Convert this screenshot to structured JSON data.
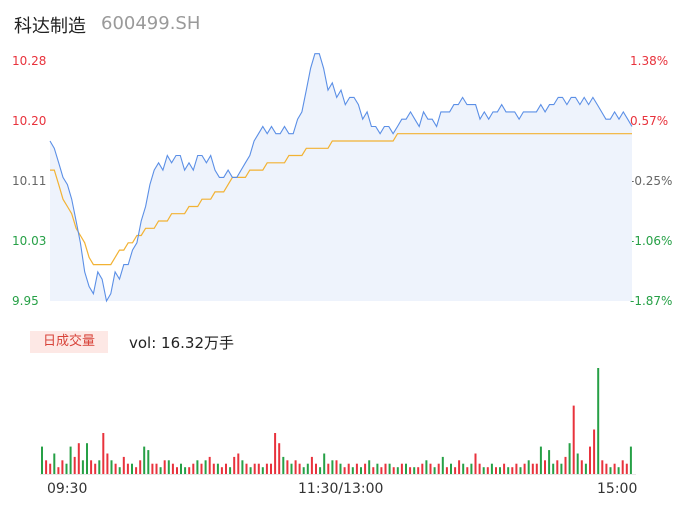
{
  "header": {
    "name": "科达制造",
    "code": "600499.SH"
  },
  "chart_data": [
    {
      "type": "line",
      "series": [
        {
          "values": [
            10.17,
            10.16,
            10.14,
            10.12,
            10.11,
            10.09,
            10.06,
            10.03,
            9.99,
            9.97,
            9.96,
            9.99,
            9.98,
            9.95,
            9.96,
            9.99,
            9.98,
            10.0,
            10.0,
            10.02,
            10.03,
            10.06,
            10.08,
            10.11,
            10.13,
            10.14,
            10.13,
            10.15,
            10.14,
            10.15,
            10.15,
            10.13,
            10.14,
            10.13,
            10.15,
            10.15,
            10.14,
            10.15,
            10.13,
            10.12,
            10.12,
            10.13,
            10.12,
            10.12,
            10.13,
            10.14,
            10.15,
            10.17,
            10.18,
            10.19,
            10.18,
            10.19,
            10.18,
            10.18,
            10.19,
            10.18,
            10.18,
            10.2,
            10.21,
            10.24,
            10.27,
            10.29,
            10.29,
            10.27,
            10.24,
            10.25,
            10.23,
            10.24,
            10.22,
            10.23,
            10.23,
            10.22,
            10.2,
            10.21,
            10.19,
            10.19,
            10.18,
            10.19,
            10.19,
            10.18,
            10.19,
            10.2,
            10.2,
            10.21,
            10.2,
            10.19,
            10.21,
            10.2,
            10.2,
            10.19,
            10.21,
            10.21,
            10.21,
            10.22,
            10.22,
            10.23,
            10.22,
            10.22,
            10.22,
            10.2,
            10.21,
            10.2,
            10.21,
            10.21,
            10.22,
            10.21,
            10.21,
            10.21,
            10.2,
            10.21,
            10.21,
            10.21,
            10.21,
            10.22,
            10.21,
            10.22,
            10.22,
            10.23,
            10.23,
            10.22,
            10.23,
            10.23,
            10.22,
            10.23,
            10.22,
            10.23,
            10.22,
            10.21,
            10.2,
            10.2,
            10.21,
            10.2,
            10.21,
            10.2,
            10.19
          ]
        },
        {
          "values": [
            10.13,
            10.13,
            10.11,
            10.09,
            10.08,
            10.07,
            10.05,
            10.04,
            10.03,
            10.01,
            10.0,
            10.0,
            10.0,
            10.0,
            10.0,
            10.01,
            10.02,
            10.02,
            10.03,
            10.03,
            10.04,
            10.04,
            10.05,
            10.05,
            10.05,
            10.06,
            10.06,
            10.06,
            10.07,
            10.07,
            10.07,
            10.07,
            10.08,
            10.08,
            10.08,
            10.09,
            10.09,
            10.09,
            10.1,
            10.1,
            10.1,
            10.11,
            10.12,
            10.12,
            10.12,
            10.12,
            10.13,
            10.13,
            10.13,
            10.13,
            10.14,
            10.14,
            10.14,
            10.14,
            10.14,
            10.15,
            10.15,
            10.15,
            10.15,
            10.16,
            10.16,
            10.16,
            10.16,
            10.16,
            10.16,
            10.17,
            10.17,
            10.17,
            10.17,
            10.17,
            10.17,
            10.17,
            10.17,
            10.17,
            10.17,
            10.17,
            10.17,
            10.17,
            10.17,
            10.17,
            10.18,
            10.18,
            10.18,
            10.18,
            10.18,
            10.18,
            10.18,
            10.18,
            10.18,
            10.18,
            10.18,
            10.18,
            10.18,
            10.18,
            10.18,
            10.18,
            10.18,
            10.18,
            10.18,
            10.18,
            10.18,
            10.18,
            10.18,
            10.18,
            10.18,
            10.18,
            10.18,
            10.18,
            10.18,
            10.18,
            10.18,
            10.18,
            10.18,
            10.18,
            10.18,
            10.18,
            10.18,
            10.18,
            10.18,
            10.18,
            10.18,
            10.18,
            10.18,
            10.18,
            10.18,
            10.18,
            10.18,
            10.18,
            10.18,
            10.18,
            10.18,
            10.18,
            10.18,
            10.18,
            10.18
          ]
        }
      ],
      "y_ticks_left": [
        "10.28",
        "10.20",
        "10.11",
        "10.03",
        "9.95"
      ],
      "y_ticks_right": [
        "1.38%",
        "0.57%",
        "-0.25%",
        "-1.06%",
        "-1.87%"
      ],
      "ylim": [
        9.95,
        10.28
      ],
      "colors": {
        "price": "#5b8fe6",
        "avg": "#f2b233",
        "up": "#e8323c",
        "down": "#26a046",
        "neutral": "#666666"
      }
    },
    {
      "type": "bar",
      "title": "日成交量",
      "label": "vol: 16.32万手",
      "x_ticks": [
        "09:30",
        "11:30/13:00",
        "15:00"
      ],
      "values": [
        8,
        4,
        3,
        6,
        2,
        4,
        3,
        8,
        5,
        9,
        4,
        9,
        4,
        3,
        4,
        12,
        6,
        4,
        3,
        2,
        5,
        3,
        3,
        2,
        4,
        8,
        7,
        3,
        3,
        2,
        4,
        4,
        3,
        2,
        3,
        2,
        2,
        3,
        4,
        3,
        4,
        5,
        3,
        3,
        2,
        3,
        2,
        5,
        6,
        4,
        3,
        2,
        3,
        3,
        2,
        3,
        3,
        12,
        9,
        5,
        4,
        3,
        4,
        3,
        2,
        3,
        5,
        3,
        2,
        6,
        3,
        4,
        4,
        3,
        2,
        3,
        2,
        3,
        2,
        3,
        4,
        2,
        3,
        2,
        3,
        3,
        2,
        2,
        3,
        3,
        2,
        2,
        2,
        3,
        4,
        3,
        2,
        3,
        5,
        2,
        3,
        2,
        4,
        3,
        2,
        3,
        6,
        3,
        2,
        2,
        3,
        2,
        2,
        3,
        2,
        2,
        3,
        2,
        3,
        4,
        3,
        3,
        8,
        4,
        7,
        3,
        4,
        3,
        5,
        9,
        20,
        6,
        4,
        3,
        8,
        13,
        31,
        4,
        3,
        2,
        3,
        2,
        4,
        3,
        8
      ],
      "colors_up": [
        0,
        1,
        1,
        0,
        1,
        1,
        0,
        0,
        1,
        1,
        0,
        0,
        1,
        1,
        0,
        1,
        1,
        0,
        1,
        0,
        1,
        1,
        0,
        1,
        1,
        0,
        0,
        1,
        1,
        0,
        1,
        0,
        1,
        1,
        0,
        0,
        1,
        1,
        0,
        1,
        0,
        1,
        1,
        0,
        1,
        1,
        0,
        1,
        1,
        0,
        1,
        0,
        1,
        1,
        0,
        1,
        1,
        1,
        1,
        0,
        1,
        0,
        1,
        1,
        0,
        0,
        1,
        1,
        0,
        0,
        1,
        0,
        1,
        0,
        1,
        1,
        0,
        1,
        0,
        1,
        0,
        1,
        0,
        1,
        1,
        0,
        1,
        0,
        1,
        0,
        1,
        0,
        1,
        1,
        0,
        1,
        0,
        1,
        0,
        1,
        0,
        1,
        1,
        0,
        1,
        0,
        1,
        1,
        0,
        1,
        0,
        1,
        0,
        1,
        0,
        1,
        1,
        0,
        1,
        0,
        1,
        1,
        0,
        1,
        0,
        0,
        1,
        0,
        1,
        0,
        1,
        0,
        1,
        0,
        1,
        1,
        0,
        1,
        1,
        0,
        1,
        0,
        1,
        1,
        0
      ]
    }
  ]
}
